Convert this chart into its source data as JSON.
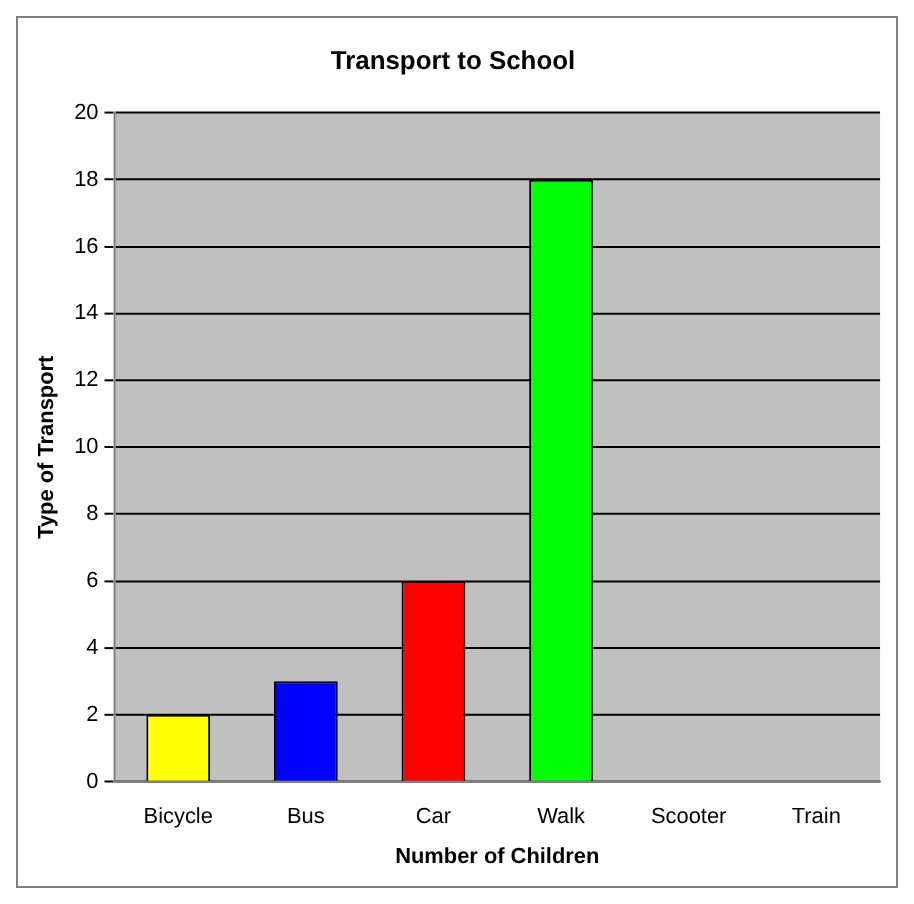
{
  "chart_data": {
    "type": "bar",
    "title": "Transport to School",
    "xlabel": "Number of Children",
    "ylabel": "Type of Transport",
    "categories": [
      "Bicycle",
      "Bus",
      "Car",
      "Walk",
      "Scooter",
      "Train"
    ],
    "values": [
      2,
      3,
      6,
      18,
      0,
      0
    ],
    "colors": [
      "#ffff00",
      "#0000ff",
      "#ff0000",
      "#00ff00",
      "#ff00ff",
      "#00ffff"
    ],
    "ylim": [
      0,
      20
    ],
    "yticks": [
      0,
      2,
      4,
      6,
      8,
      10,
      12,
      14,
      16,
      18,
      20
    ],
    "grid": "y",
    "legend": false
  }
}
